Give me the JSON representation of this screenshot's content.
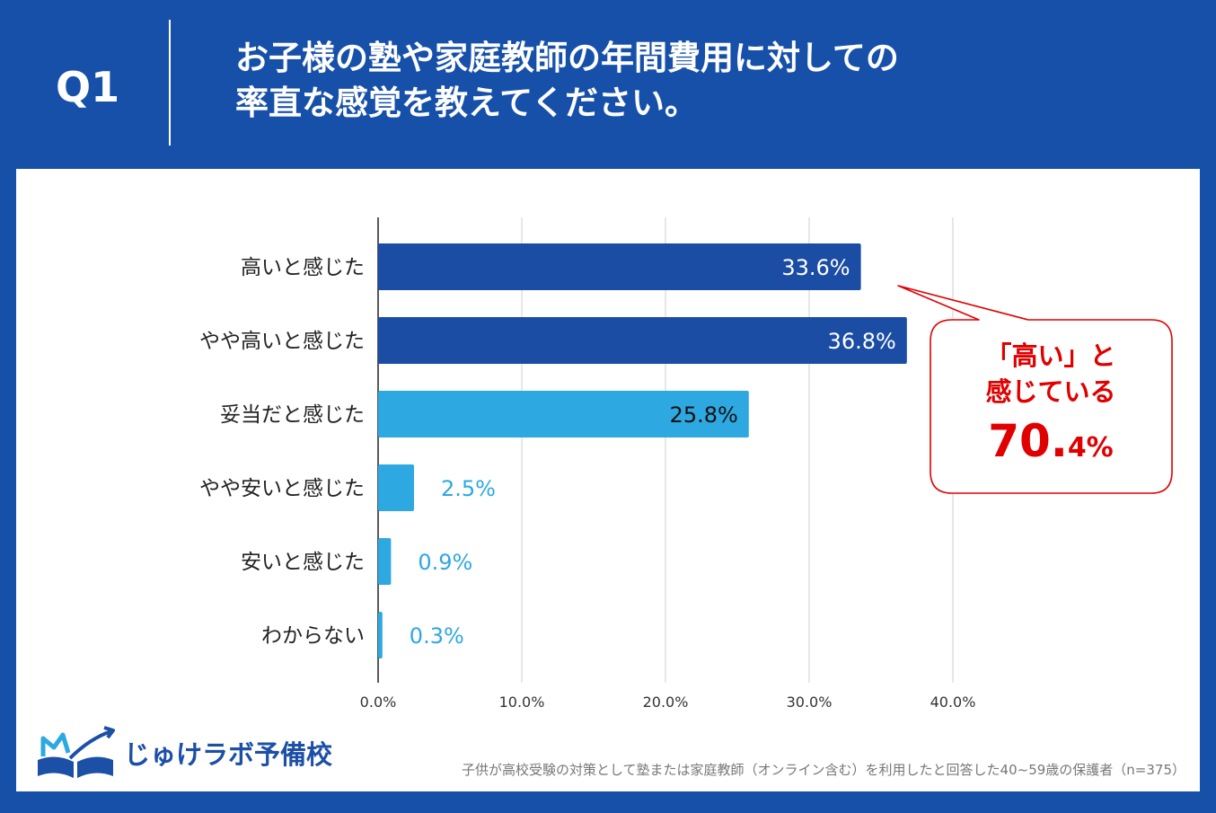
{
  "header": {
    "q_label": "Q1",
    "line1": "お子様の塾や家庭教師の年間費用に対しての",
    "line2": "率直な感覚を教えてください。"
  },
  "chart_data": {
    "type": "bar",
    "orientation": "horizontal",
    "categories": [
      "高いと感じた",
      "やや高いと感じた",
      "妥当だと感じた",
      "やや安いと感じた",
      "安いと感じた",
      "わからない"
    ],
    "values": [
      33.6,
      36.8,
      25.8,
      2.5,
      0.9,
      0.3
    ],
    "value_labels": [
      "33.6%",
      "36.8%",
      "25.8%",
      "2.5%",
      "0.9%",
      "0.3%"
    ],
    "bar_colors": [
      "#1a4da3",
      "#1a4da3",
      "#2ea8e1",
      "#2ea8e1",
      "#2ea8e1",
      "#2ea8e1"
    ],
    "x_ticks": [
      "0.0%",
      "10.0%",
      "20.0%",
      "30.0%",
      "40.0%"
    ],
    "xlim": [
      0,
      40
    ],
    "grid": true
  },
  "callout": {
    "line1": "「高い」と",
    "line2": "感じている",
    "big_number": "70.",
    "big_suffix": "4%"
  },
  "logo": {
    "text": "じゅけラボ予備校",
    "icon": "open-book-icon"
  },
  "footnote": "子供が高校受験の対策として塾または家庭教師（オンライン含む）を利用したと回答した40~59歳の保護者（n=375）",
  "colors": {
    "header_bg": "#1750a9",
    "accent_red": "#e00000",
    "dark_bar": "#1a4da3",
    "light_bar": "#2ea8e1"
  }
}
